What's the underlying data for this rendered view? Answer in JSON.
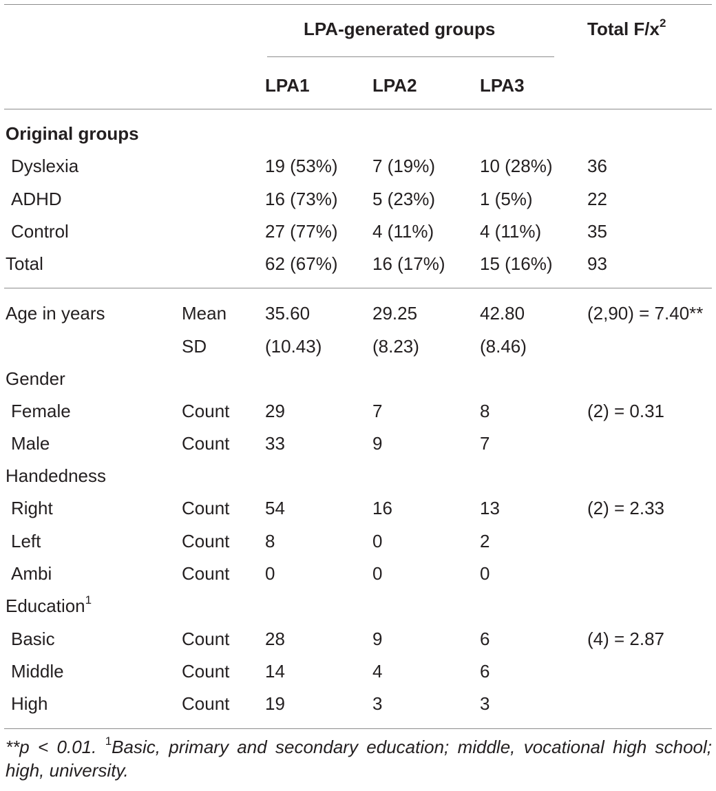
{
  "header": {
    "group_title": "LPA-generated groups",
    "total_title": "Total F/x",
    "total_sup": "2",
    "col_lpa1": "LPA1",
    "col_lpa2": "LPA2",
    "col_lpa3": "LPA3"
  },
  "original_groups": {
    "title": "Original groups",
    "rows": [
      {
        "label": "Dyslexia",
        "lpa1": "19 (53%)",
        "lpa2": "7 (19%)",
        "lpa3": "10 (28%)",
        "total": "36"
      },
      {
        "label": "ADHD",
        "lpa1": "16 (73%)",
        "lpa2": "5 (23%)",
        "lpa3": "1 (5%)",
        "total": "22"
      },
      {
        "label": "Control",
        "lpa1": "27 (77%)",
        "lpa2": "4 (11%)",
        "lpa3": "4 (11%)",
        "total": "35"
      },
      {
        "label": "Total",
        "lpa1": "62 (67%)",
        "lpa2": "16 (17%)",
        "lpa3": "15 (16%)",
        "total": "93"
      }
    ]
  },
  "age": {
    "label": "Age in years",
    "rows": [
      {
        "stat": "Mean",
        "lpa1": "35.60",
        "lpa2": "29.25",
        "lpa3": "42.80",
        "total": "(2,90) = 7.40**"
      },
      {
        "stat": "SD",
        "lpa1": "(10.43)",
        "lpa2": "(8.23)",
        "lpa3": "(8.46)",
        "total": ""
      }
    ]
  },
  "gender": {
    "label": "Gender",
    "rows": [
      {
        "label": "Female",
        "stat": "Count",
        "lpa1": "29",
        "lpa2": "7",
        "lpa3": "8",
        "total": "(2) = 0.31"
      },
      {
        "label": "Male",
        "stat": "Count",
        "lpa1": "33",
        "lpa2": "9",
        "lpa3": "7",
        "total": ""
      }
    ]
  },
  "handedness": {
    "label": "Handedness",
    "rows": [
      {
        "label": "Right",
        "stat": "Count",
        "lpa1": "54",
        "lpa2": "16",
        "lpa3": "13",
        "total": "(2) = 2.33"
      },
      {
        "label": "Left",
        "stat": "Count",
        "lpa1": "8",
        "lpa2": "0",
        "lpa3": "2",
        "total": ""
      },
      {
        "label": "Ambi",
        "stat": "Count",
        "lpa1": "0",
        "lpa2": "0",
        "lpa3": "0",
        "total": ""
      }
    ]
  },
  "education": {
    "label": "Education",
    "label_sup": "1",
    "rows": [
      {
        "label": "Basic",
        "stat": "Count",
        "lpa1": "28",
        "lpa2": "9",
        "lpa3": "6",
        "total": "(4) = 2.87"
      },
      {
        "label": "Middle",
        "stat": "Count",
        "lpa1": "14",
        "lpa2": "4",
        "lpa3": "6",
        "total": ""
      },
      {
        "label": "High",
        "stat": "Count",
        "lpa1": "19",
        "lpa2": "3",
        "lpa3": "3",
        "total": ""
      }
    ]
  },
  "footnote": {
    "sig": "**p < 0.01.",
    "sup": "1",
    "text": "Basic, primary and secondary education; middle, vocational high school; high, university."
  }
}
